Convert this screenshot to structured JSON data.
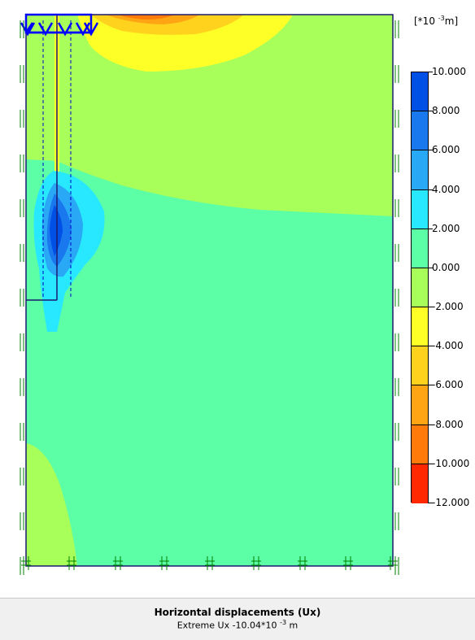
{
  "window": {
    "background": "#ffffff"
  },
  "plot": {
    "name": "Horizontal displacements (Ux) contour plot",
    "boundary_color": "#1a1a6e",
    "structure_color": "#0000ff",
    "fixity_color": "#00a000"
  },
  "legend": {
    "unit_prefix": "[*10",
    "unit_exponent": "-3",
    "unit_suffix": "m]",
    "bands": [
      {
        "color": "#0050e6"
      },
      {
        "color": "#1a78ef"
      },
      {
        "color": "#28a8f5"
      },
      {
        "color": "#28e8ff"
      },
      {
        "color": "#5cffa6"
      },
      {
        "color": "#a8ff5a"
      },
      {
        "color": "#ffff28"
      },
      {
        "color": "#ffd21e"
      },
      {
        "color": "#ffa514"
      },
      {
        "color": "#ff7a0a"
      },
      {
        "color": "#ff2800"
      }
    ],
    "ticks": [
      "10.000",
      "8.000",
      "6.000",
      "4.000",
      "2.000",
      "0.000",
      "-2.000",
      "-4.000",
      "-6.000",
      "-8.000",
      "-10.000",
      "-12.000"
    ]
  },
  "caption": {
    "title": "Horizontal displacements (Ux)",
    "extreme_prefix": "Extreme Ux -10.04*10",
    "extreme_exponent": "-3",
    "extreme_suffix": " m"
  }
}
